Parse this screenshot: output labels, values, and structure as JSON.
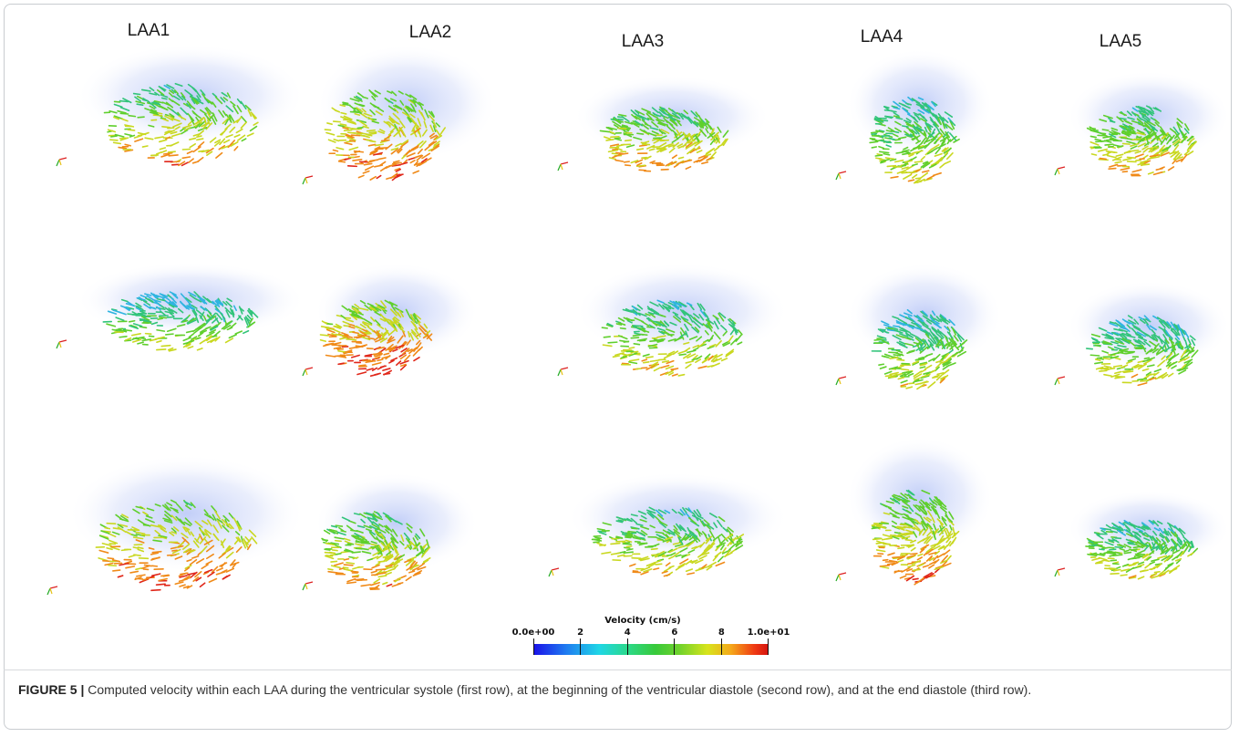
{
  "columns": [
    "LAA1",
    "LAA2",
    "LAA3",
    "LAA4",
    "LAA5"
  ],
  "legend": {
    "title": "Velocity (cm/s)",
    "tick_labels": [
      "0.0e+00",
      "2",
      "4",
      "6",
      "8",
      "1.0e+01"
    ],
    "colormap": [
      "#1a10e8",
      "#1fd6e6",
      "#38c93a",
      "#d7e41c",
      "#d4130f"
    ]
  },
  "caption": {
    "label": "FIGURE 5 |",
    "text": " Computed velocity within each LAA during the ventricular systole (first row), at the beginning of the ventricular diastole (second row), and at the end diastole (third row)."
  }
}
